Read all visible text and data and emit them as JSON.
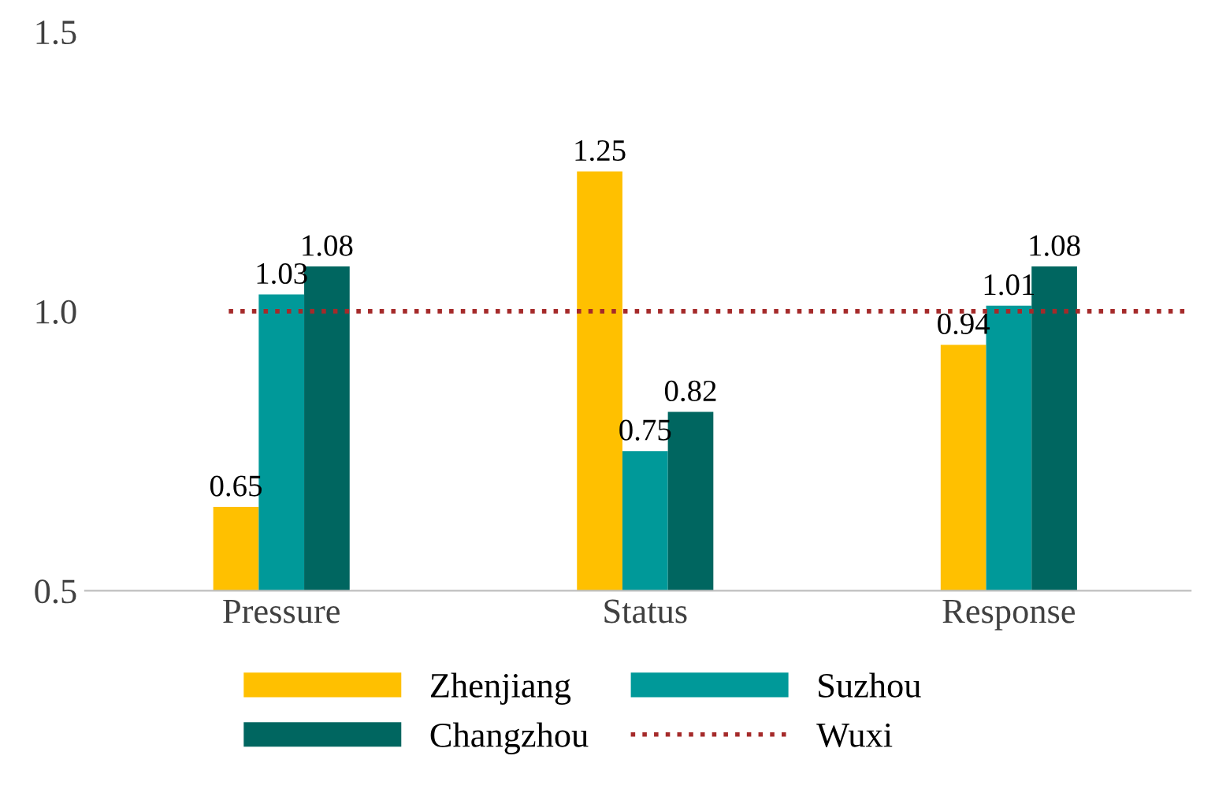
{
  "chart_data": {
    "type": "bar",
    "categories": [
      "Pressure",
      "Status",
      "Response"
    ],
    "series": [
      {
        "name": "Zhenjiang",
        "color": "#ffc000",
        "values": [
          0.65,
          1.25,
          0.94
        ]
      },
      {
        "name": "Suzhou",
        "color": "#009999",
        "values": [
          1.03,
          0.75,
          1.01
        ]
      },
      {
        "name": "Changzhou",
        "color": "#006660",
        "values": [
          1.08,
          0.82,
          1.08
        ]
      }
    ],
    "ref_lines": [
      {
        "axis": "y",
        "value": 1.0,
        "label": "Wuxi",
        "color": "#a52a2a",
        "line_style": "dotted"
      }
    ],
    "ylim": [
      0.5,
      1.5
    ],
    "yticks": [
      {
        "value": 0.5,
        "label": "0.5"
      },
      {
        "value": 1.0,
        "label": "1.0"
      },
      {
        "value": 1.5,
        "label": "1.5"
      }
    ],
    "data_labels": true,
    "grid": false,
    "legend": "bottom"
  }
}
